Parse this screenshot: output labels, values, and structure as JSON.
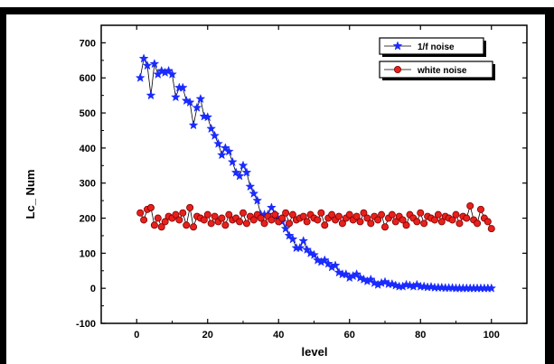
{
  "chart_data": {
    "type": "line",
    "title": "",
    "xlabel": "level",
    "ylabel": "Lc_ Num",
    "xlim": [
      -10,
      110
    ],
    "ylim": [
      -100,
      750
    ],
    "x_ticks": [
      0,
      20,
      40,
      60,
      80,
      100
    ],
    "y_ticks": [
      -100,
      0,
      100,
      200,
      300,
      400,
      500,
      600,
      700
    ],
    "grid": false,
    "legend_position": "top-right",
    "x": [
      1,
      2,
      3,
      4,
      5,
      6,
      7,
      8,
      9,
      10,
      11,
      12,
      13,
      14,
      15,
      16,
      17,
      18,
      19,
      20,
      21,
      22,
      23,
      24,
      25,
      26,
      27,
      28,
      29,
      30,
      31,
      32,
      33,
      34,
      35,
      36,
      37,
      38,
      39,
      40,
      41,
      42,
      43,
      44,
      45,
      46,
      47,
      48,
      49,
      50,
      51,
      52,
      53,
      54,
      55,
      56,
      57,
      58,
      59,
      60,
      61,
      62,
      63,
      64,
      65,
      66,
      67,
      68,
      69,
      70,
      71,
      72,
      73,
      74,
      75,
      76,
      77,
      78,
      79,
      80,
      81,
      82,
      83,
      84,
      85,
      86,
      87,
      88,
      89,
      90,
      91,
      92,
      93,
      94,
      95,
      96,
      97,
      98,
      99,
      100
    ],
    "series": [
      {
        "name": "1/f noise",
        "marker": "star",
        "color": "#1a2bff",
        "values": [
          600,
          655,
          635,
          550,
          640,
          610,
          620,
          615,
          620,
          610,
          545,
          572,
          572,
          535,
          530,
          465,
          515,
          540,
          490,
          488,
          455,
          435,
          412,
          380,
          400,
          390,
          360,
          330,
          320,
          350,
          330,
          290,
          270,
          250,
          210,
          210,
          210,
          230,
          210,
          195,
          190,
          170,
          150,
          140,
          115,
          115,
          135,
          110,
          100,
          95,
          80,
          75,
          80,
          70,
          60,
          65,
          45,
          40,
          40,
          30,
          35,
          40,
          30,
          25,
          20,
          25,
          15,
          10,
          15,
          18,
          12,
          12,
          8,
          5,
          5,
          10,
          8,
          5,
          10,
          5,
          5,
          3,
          4,
          2,
          2,
          2,
          1,
          1,
          1,
          0,
          0,
          0,
          0,
          0,
          0,
          0,
          0,
          0,
          0,
          0
        ]
      },
      {
        "name": "white noise",
        "marker": "circle",
        "color": "#e8201c",
        "values": [
          215,
          195,
          225,
          230,
          180,
          200,
          175,
          190,
          205,
          200,
          210,
          195,
          215,
          180,
          230,
          175,
          205,
          200,
          195,
          210,
          185,
          205,
          190,
          200,
          180,
          210,
          195,
          200,
          190,
          215,
          185,
          205,
          195,
          210,
          200,
          185,
          205,
          195,
          210,
          190,
          200,
          215,
          185,
          210,
          195,
          200,
          205,
          190,
          210,
          200,
          195,
          215,
          180,
          200,
          210,
          195,
          205,
          185,
          200,
          210,
          195,
          205,
          190,
          215,
          200,
          185,
          205,
          195,
          210,
          175,
          200,
          210,
          190,
          205,
          195,
          180,
          210,
          200,
          190,
          215,
          185,
          205,
          200,
          195,
          210,
          190,
          205,
          200,
          195,
          210,
          185,
          205,
          200,
          235,
          195,
          185,
          225,
          200,
          190,
          170
        ]
      }
    ]
  }
}
